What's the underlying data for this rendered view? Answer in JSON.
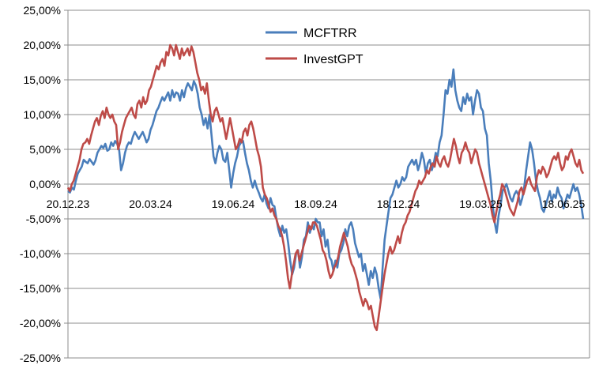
{
  "chart_data": {
    "type": "line",
    "title": "",
    "xlabel": "",
    "ylabel": "",
    "ylim": [
      -25,
      25
    ],
    "y_ticks": [
      25,
      20,
      15,
      10,
      5,
      0,
      -5,
      -10,
      -15,
      -20,
      -25
    ],
    "y_tick_labels": [
      "25,00%",
      "20,00%",
      "15,00%",
      "10,00%",
      "5,00%",
      "0,00%",
      "-5,00%",
      "-10,00%",
      "-15,00%",
      "-20,00%",
      "-25,00%"
    ],
    "x_tick_labels": [
      "20.12.23",
      "20.03.24",
      "19.06.24",
      "18.09.24",
      "18.12.24",
      "19.03.25",
      "18.06.25"
    ],
    "grid": true,
    "legend_position": "top-center",
    "series": [
      {
        "name": "MCFTRR",
        "color": "#4a7ebb",
        "values": [
          -1.0,
          -1.2,
          -0.5,
          -0.8,
          0.5,
          1.5,
          2.0,
          2.5,
          3.5,
          3.2,
          3.0,
          3.6,
          3.2,
          2.8,
          3.4,
          4.5,
          5.0,
          5.5,
          5.2,
          5.8,
          4.8,
          5.0,
          6.0,
          5.5,
          6.2,
          5.8,
          5.0,
          2.0,
          3.0,
          4.5,
          5.5,
          6.0,
          5.8,
          6.8,
          7.5,
          7.0,
          6.5,
          7.0,
          7.5,
          6.8,
          6.0,
          6.5,
          7.8,
          8.5,
          9.5,
          10.5,
          11.0,
          11.8,
          12.5,
          12.0,
          12.6,
          13.2,
          12.0,
          13.5,
          12.5,
          13.2,
          13.0,
          12.0,
          13.5,
          12.5,
          13.8,
          14.5,
          14.0,
          13.5,
          14.8,
          14.2,
          13.0,
          11.0,
          10.0,
          8.5,
          9.5,
          8.0,
          10.0,
          7.0,
          4.0,
          3.0,
          4.5,
          5.5,
          5.0,
          3.5,
          3.2,
          4.5,
          2.0,
          -0.5,
          1.5,
          3.0,
          4.0,
          5.5,
          6.0,
          6.2,
          4.5,
          3.0,
          2.0,
          0.5,
          -0.5,
          0.5,
          -0.5,
          -1.2,
          -2.0,
          -2.5,
          -1.5,
          -2.8,
          -3.5,
          -2.0,
          -3.0,
          -3.2,
          -5.0,
          -6.5,
          -7.5,
          -6.0,
          -7.0,
          -6.5,
          -8.5,
          -11.0,
          -13.0,
          -12.0,
          -10.0,
          -9.5,
          -12.0,
          -10.5,
          -8.0,
          -7.5,
          -5.5,
          -7.0,
          -6.0,
          -6.5,
          -5.0,
          -5.5,
          -5.5,
          -7.5,
          -6.5,
          -9.0,
          -8.0,
          -10.5,
          -11.0,
          -12.5,
          -11.0,
          -12.0,
          -10.0,
          -9.5,
          -8.5,
          -6.5,
          -7.5,
          -6.0,
          -5.5,
          -6.5,
          -8.5,
          -9.5,
          -10.5,
          -10.0,
          -12.5,
          -11.5,
          -13.0,
          -14.5,
          -12.5,
          -13.5,
          -12.0,
          -13.0,
          -15.0,
          -16.5,
          -12.0,
          -8.0,
          -6.0,
          -4.0,
          -2.0,
          -1.5,
          -0.5,
          0.5,
          -0.5,
          0.0,
          1.0,
          0.5,
          1.0,
          2.5,
          3.0,
          3.5,
          2.8,
          3.5,
          2.0,
          3.0,
          4.5,
          3.5,
          1.5,
          3.0,
          3.5,
          2.0,
          3.0,
          4.5,
          4.0,
          6.0,
          7.0,
          10.0,
          13.5,
          13.0,
          15.0,
          14.0,
          16.5,
          13.5,
          12.0,
          11.0,
          10.5,
          12.5,
          11.5,
          13.0,
          12.0,
          12.5,
          10.0,
          12.0,
          13.5,
          13.0,
          11.0,
          10.5,
          8.0,
          7.0,
          3.0,
          0.5,
          -3.0,
          -5.5,
          -7.0,
          -4.5,
          -3.0,
          -1.0,
          -0.5,
          0.0,
          -1.0,
          -2.0,
          -2.5,
          -1.5,
          -1.0,
          -1.5,
          -3.0,
          -2.0,
          -0.5,
          2.0,
          4.0,
          6.0,
          5.0,
          3.0,
          0.5,
          -1.0,
          -2.0,
          -3.5,
          -4.0,
          -3.0,
          -2.0,
          -1.0,
          -2.5,
          -1.5,
          -2.0,
          -0.5,
          -1.5,
          -2.0,
          -3.5,
          -2.5,
          -1.5,
          -2.0,
          -1.0,
          0.0,
          -1.0,
          -0.5,
          -1.5,
          -3.0,
          -5.0
        ]
      },
      {
        "name": "InvestGPT",
        "color": "#be4b48",
        "values": [
          -0.5,
          -1.0,
          0.0,
          0.5,
          1.5,
          2.5,
          3.5,
          5.0,
          5.8,
          6.0,
          6.5,
          5.8,
          7.0,
          8.0,
          9.0,
          9.5,
          8.5,
          9.8,
          10.5,
          9.5,
          11.0,
          10.0,
          9.5,
          10.0,
          9.0,
          8.5,
          5.0,
          6.0,
          7.5,
          8.5,
          9.5,
          10.0,
          10.5,
          11.0,
          10.0,
          9.5,
          11.5,
          12.0,
          11.0,
          12.5,
          11.5,
          12.0,
          13.5,
          14.0,
          15.0,
          16.0,
          17.0,
          16.5,
          17.5,
          18.0,
          17.0,
          19.0,
          18.5,
          20.0,
          19.5,
          18.5,
          20.0,
          19.0,
          18.0,
          19.5,
          18.5,
          19.0,
          19.5,
          18.5,
          19.8,
          19.0,
          17.5,
          16.0,
          15.0,
          13.5,
          14.0,
          13.0,
          14.5,
          12.0,
          10.0,
          9.0,
          10.5,
          11.0,
          10.0,
          9.0,
          9.5,
          8.0,
          6.5,
          8.0,
          9.5,
          8.0,
          6.5,
          5.0,
          5.5,
          6.5,
          6.0,
          7.5,
          8.0,
          7.0,
          8.5,
          9.0,
          8.0,
          6.5,
          5.0,
          4.0,
          2.5,
          -0.5,
          -1.5,
          -2.0,
          -3.0,
          -4.0,
          -3.5,
          -4.5,
          -5.0,
          -6.0,
          -6.5,
          -7.5,
          -9.0,
          -11.0,
          -13.5,
          -15.0,
          -13.0,
          -11.5,
          -10.0,
          -9.5,
          -11.0,
          -10.0,
          -9.0,
          -8.0,
          -7.0,
          -6.0,
          -6.5,
          -5.5,
          -5.5,
          -6.0,
          -7.0,
          -8.0,
          -9.5,
          -10.0,
          -11.0,
          -12.5,
          -13.5,
          -13.0,
          -12.0,
          -11.5,
          -10.5,
          -9.0,
          -8.0,
          -7.0,
          -8.0,
          -9.0,
          -10.5,
          -11.5,
          -12.0,
          -13.0,
          -14.0,
          -15.5,
          -16.5,
          -17.5,
          -16.5,
          -17.0,
          -18.0,
          -17.5,
          -19.0,
          -20.5,
          -21.0,
          -19.0,
          -17.0,
          -15.0,
          -13.0,
          -11.5,
          -10.0,
          -9.0,
          -10.0,
          -9.5,
          -8.5,
          -7.5,
          -8.5,
          -7.0,
          -6.0,
          -5.5,
          -4.5,
          -4.0,
          -3.0,
          -2.0,
          -1.0,
          -0.5,
          0.5,
          0.0,
          0.5,
          1.0,
          2.0,
          1.5,
          2.5,
          3.0,
          2.5,
          4.0,
          3.0,
          2.5,
          3.5,
          4.0,
          3.0,
          2.5,
          3.5,
          5.0,
          6.5,
          5.5,
          4.0,
          3.0,
          4.5,
          5.0,
          6.0,
          5.0,
          4.5,
          3.0,
          4.0,
          5.0,
          4.5,
          3.0,
          2.0,
          1.0,
          0.0,
          -1.0,
          -2.0,
          -3.0,
          -4.5,
          -5.5,
          -4.0,
          -2.5,
          -1.5,
          0.0,
          -0.5,
          -1.5,
          -2.5,
          -3.5,
          -4.0,
          -4.5,
          -3.5,
          -2.5,
          -1.0,
          -0.5,
          -1.5,
          -0.5,
          0.5,
          1.0,
          0.0,
          -0.5,
          -1.0,
          1.0,
          2.0,
          1.5,
          2.5,
          2.0,
          1.0,
          1.5,
          2.5,
          3.5,
          4.0,
          3.5,
          4.5,
          3.0,
          2.0,
          2.5,
          4.0,
          3.5,
          4.5,
          5.0,
          4.0,
          3.0,
          2.5,
          3.5,
          2.0,
          1.5
        ]
      }
    ]
  }
}
